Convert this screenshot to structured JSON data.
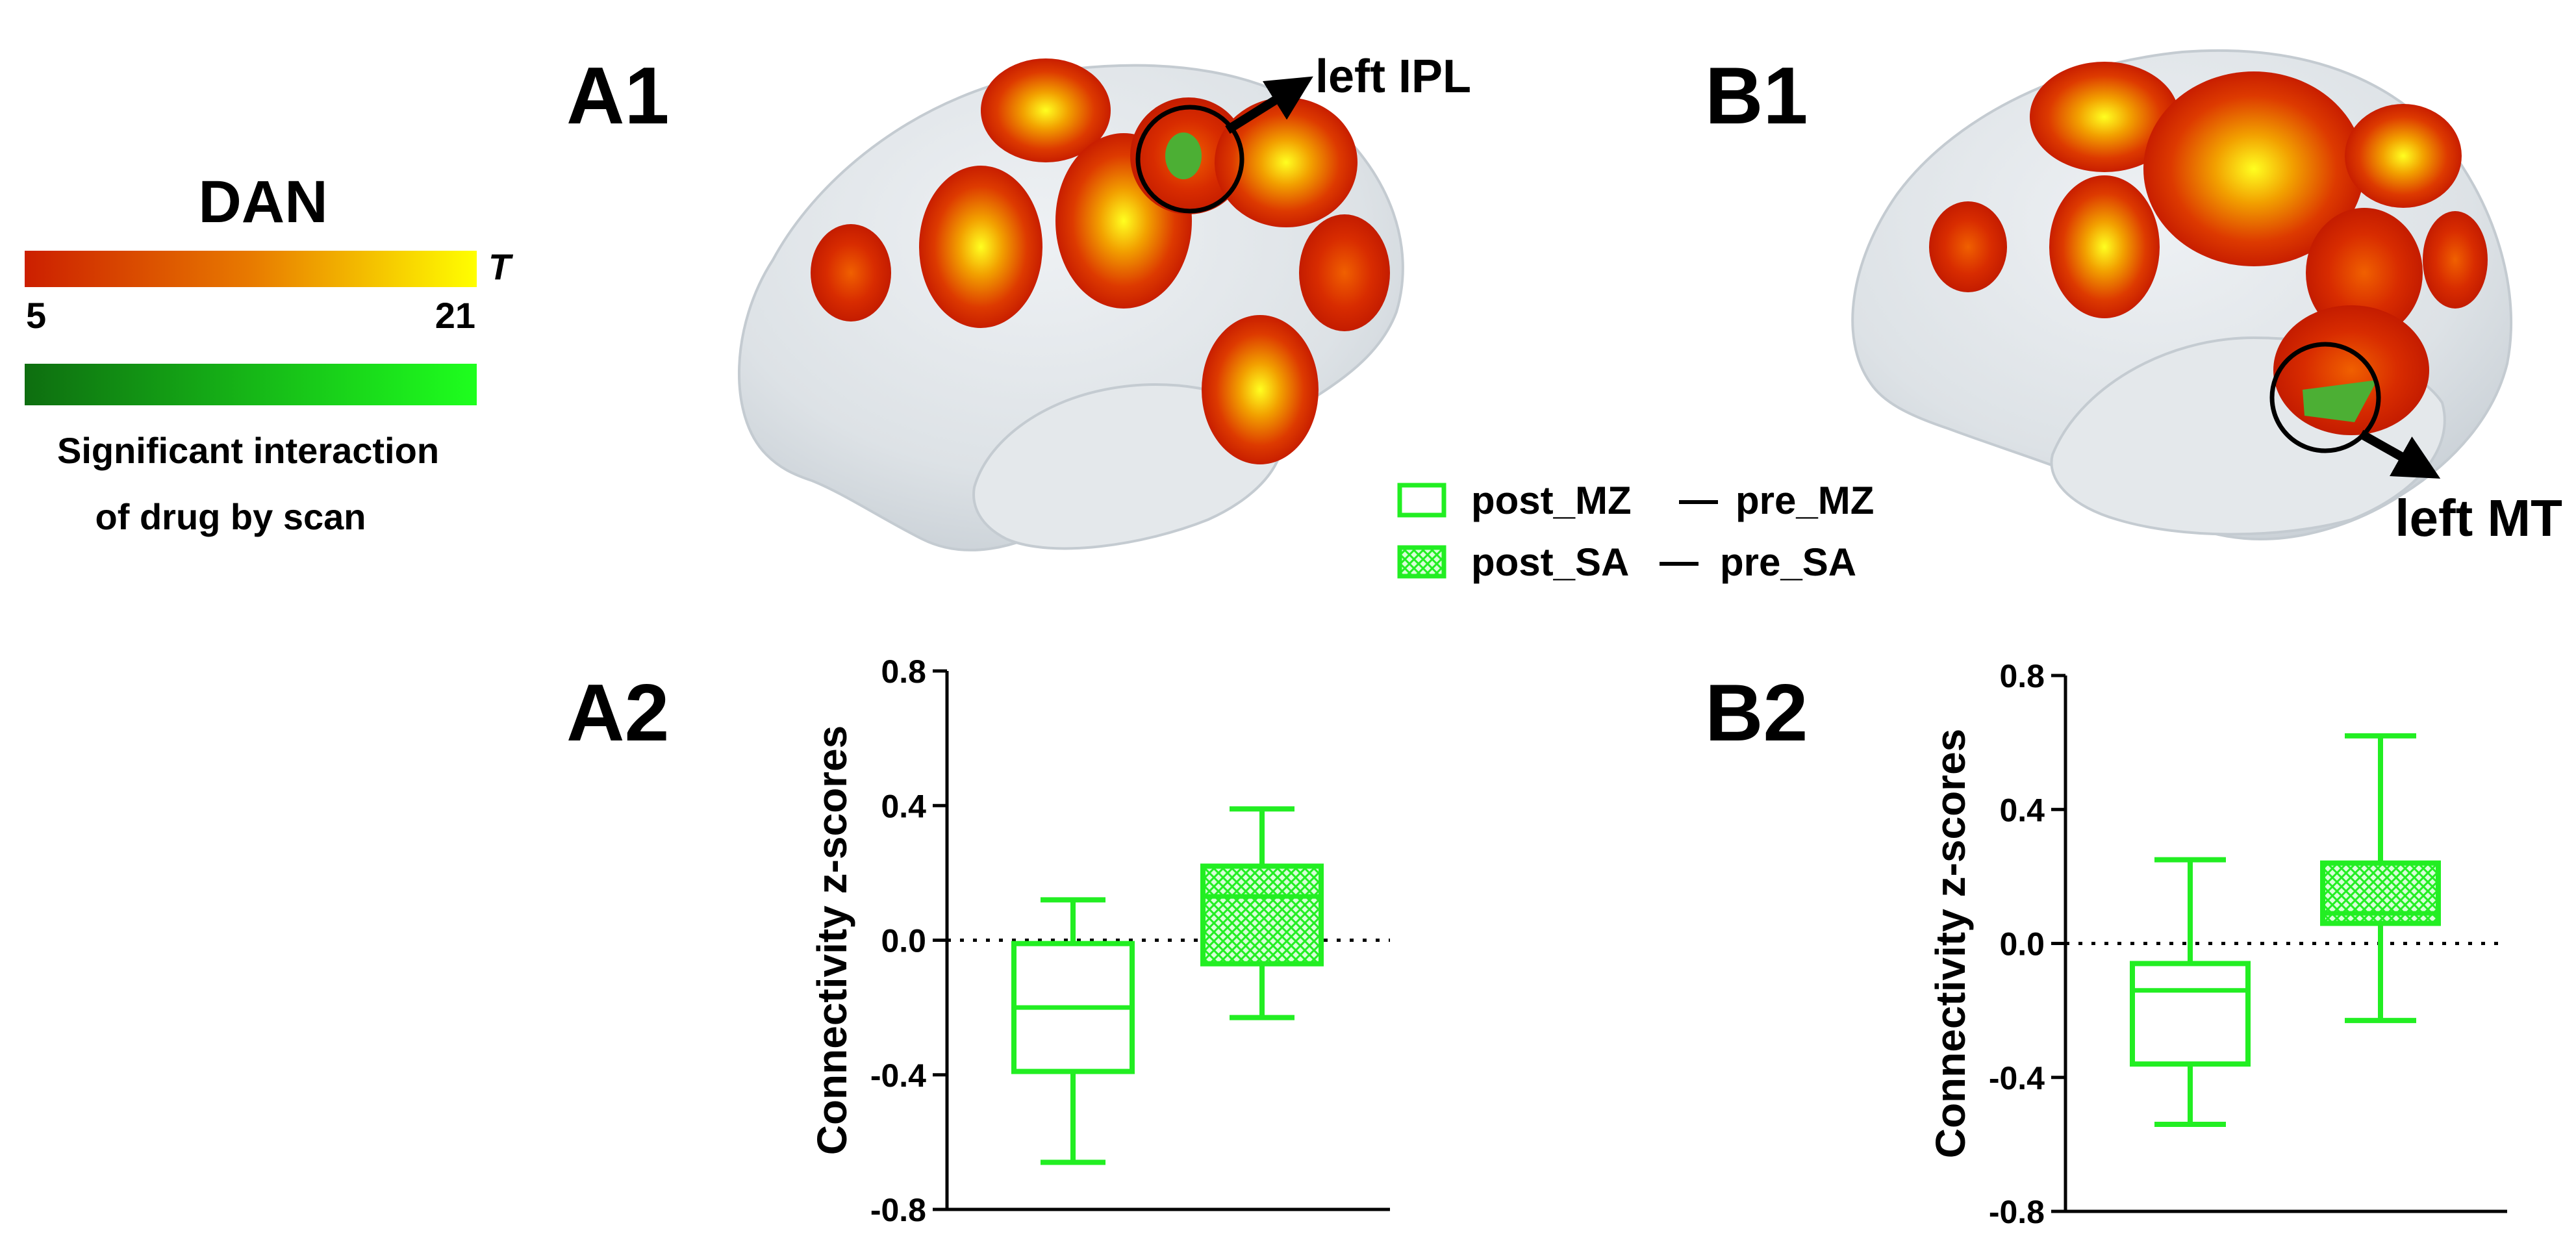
{
  "colors": {
    "positive_low": "#cc1f00",
    "positive_high": "#ffff00",
    "interaction_low": "#0e6e10",
    "interaction_high": "#1eff1e",
    "box_stroke": "#22ee22",
    "brain_surface": "#dde2e6"
  },
  "legend_left": {
    "network_title": "DAN",
    "stat_symbol": "T",
    "scale_min": "5",
    "scale_max": "21",
    "interaction_line1": "Significant interaction",
    "interaction_line2": "of drug by scan"
  },
  "panels": {
    "a1": {
      "label": "A1",
      "region_label": "left IPL"
    },
    "b1": {
      "label": "B1",
      "region_label": "left MT"
    },
    "a2": {
      "label": "A2"
    },
    "b2": {
      "label": "B2"
    }
  },
  "box_legend": [
    {
      "name_a": "post_MZ",
      "dash": "—",
      "name_b": "pre_MZ",
      "pattern": "open"
    },
    {
      "name_a": "post_SA",
      "dash": "—",
      "name_b": "pre_SA",
      "pattern": "hatched"
    }
  ],
  "chart_data": [
    {
      "type": "box",
      "panel": "A2",
      "ylabel": "Connectivity z-scores",
      "ylim": [
        -0.8,
        0.8
      ],
      "yticks": [
        "0.8",
        "0.4",
        "0.0",
        "-0.4",
        "-0.8"
      ],
      "reference_line": 0.0,
      "series": [
        {
          "name": "post_MZ — pre_MZ",
          "min": -0.66,
          "q1": -0.39,
          "median": -0.2,
          "q3": -0.01,
          "max": 0.12
        },
        {
          "name": "post_SA — pre_SA",
          "min": -0.23,
          "q1": -0.07,
          "median": 0.13,
          "q3": 0.22,
          "max": 0.39
        }
      ]
    },
    {
      "type": "box",
      "panel": "B2",
      "ylabel": "Connectivity z-scores",
      "ylim": [
        -0.8,
        0.8
      ],
      "yticks": [
        "0.8",
        "0.4",
        "0.0",
        "-0.4",
        "-0.8"
      ],
      "reference_line": 0.0,
      "series": [
        {
          "name": "post_MZ — pre_MZ",
          "min": -0.54,
          "q1": -0.36,
          "median": -0.14,
          "q3": -0.06,
          "max": 0.25
        },
        {
          "name": "post_SA — pre_SA",
          "min": -0.23,
          "q1": 0.06,
          "median": 0.09,
          "q3": 0.24,
          "max": 0.62
        }
      ]
    }
  ]
}
